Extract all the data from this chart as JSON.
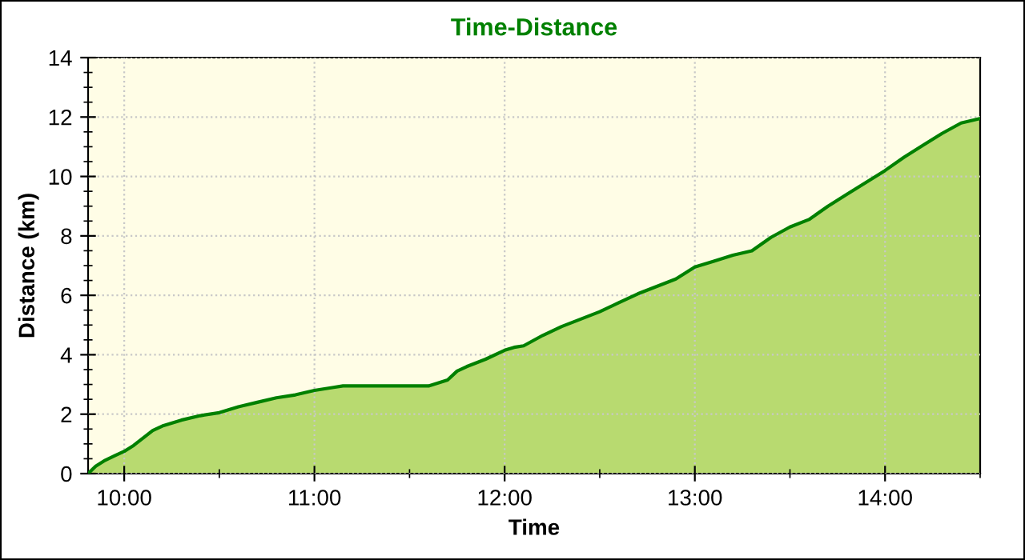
{
  "chart_data": {
    "type": "area",
    "title": "Time-Distance",
    "xlabel": "Time",
    "ylabel": "Distance (km)",
    "x": [
      9.81,
      9.85,
      9.9,
      9.95,
      10.0,
      10.05,
      10.1,
      10.15,
      10.2,
      10.3,
      10.4,
      10.5,
      10.6,
      10.7,
      10.8,
      10.9,
      11.0,
      11.1,
      11.15,
      11.3,
      11.5,
      11.6,
      11.7,
      11.75,
      11.8,
      11.9,
      12.0,
      12.05,
      12.1,
      12.2,
      12.3,
      12.4,
      12.5,
      12.6,
      12.7,
      12.8,
      12.9,
      13.0,
      13.1,
      13.2,
      13.3,
      13.4,
      13.5,
      13.6,
      13.7,
      13.8,
      13.9,
      14.0,
      14.1,
      14.2,
      14.3,
      14.4,
      14.5
    ],
    "series": [
      {
        "color": "#008000",
        "values": [
          0.0,
          0.25,
          0.45,
          0.6,
          0.75,
          0.95,
          1.2,
          1.45,
          1.6,
          1.8,
          1.95,
          2.05,
          2.25,
          2.4,
          2.55,
          2.65,
          2.8,
          2.9,
          2.95,
          2.95,
          2.95,
          2.95,
          3.15,
          3.45,
          3.6,
          3.85,
          4.15,
          4.25,
          4.3,
          4.65,
          4.95,
          5.2,
          5.45,
          5.75,
          6.05,
          6.3,
          6.55,
          6.95,
          7.15,
          7.35,
          7.5,
          7.95,
          8.3,
          8.55,
          9.0,
          9.4,
          9.8,
          10.2,
          10.65,
          11.05,
          11.45,
          11.8,
          11.95
        ]
      }
    ],
    "xlim": [
      9.81,
      14.5
    ],
    "xticks": [
      {
        "value": 10,
        "label": "10:00"
      },
      {
        "value": 11,
        "label": "11:00"
      },
      {
        "value": 12,
        "label": "12:00"
      },
      {
        "value": 13,
        "label": "13:00"
      },
      {
        "value": 14,
        "label": "14:00"
      }
    ],
    "ylim": [
      0,
      14
    ],
    "yticks": [
      0,
      2,
      4,
      6,
      8,
      10,
      12,
      14
    ],
    "grid": true
  }
}
